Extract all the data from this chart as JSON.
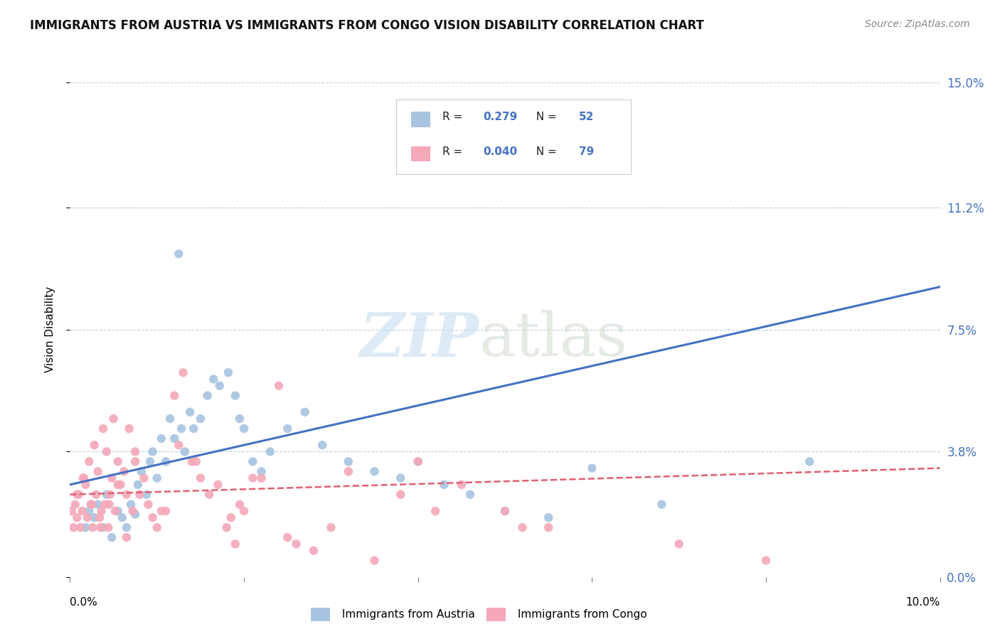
{
  "title": "IMMIGRANTS FROM AUSTRIA VS IMMIGRANTS FROM CONGO VISION DISABILITY CORRELATION CHART",
  "source": "Source: ZipAtlas.com",
  "ylabel": "Vision Disability",
  "ytick_values": [
    0.0,
    3.8,
    7.5,
    11.2,
    15.0
  ],
  "xlim": [
    0.0,
    10.0
  ],
  "ylim": [
    0.0,
    15.0
  ],
  "legend_austria_R": "0.279",
  "legend_austria_N": "52",
  "legend_congo_R": "0.040",
  "legend_congo_N": "79",
  "austria_color": "#a8c4e0",
  "congo_color": "#f4a8b8",
  "austria_line_color": "#4472c4",
  "congo_line_color": "#e06070",
  "austria_scatter_x": [
    0.18,
    0.22,
    0.28,
    0.32,
    0.38,
    0.42,
    0.48,
    0.55,
    0.6,
    0.65,
    0.7,
    0.75,
    0.78,
    0.82,
    0.88,
    0.92,
    0.95,
    1.0,
    1.05,
    1.1,
    1.15,
    1.2,
    1.28,
    1.32,
    1.38,
    1.42,
    1.5,
    1.58,
    1.65,
    1.72,
    1.82,
    1.9,
    1.95,
    2.0,
    2.1,
    2.2,
    2.3,
    2.5,
    2.7,
    2.9,
    3.2,
    3.5,
    3.8,
    4.0,
    4.3,
    4.6,
    5.0,
    5.5,
    6.0,
    6.8,
    8.5,
    1.25
  ],
  "austria_scatter_y": [
    1.5,
    2.0,
    1.8,
    2.2,
    1.5,
    2.5,
    1.2,
    2.0,
    1.8,
    1.5,
    2.2,
    1.9,
    2.8,
    3.2,
    2.5,
    3.5,
    3.8,
    3.0,
    4.2,
    3.5,
    4.8,
    4.2,
    4.5,
    3.8,
    5.0,
    4.5,
    4.8,
    5.5,
    6.0,
    5.8,
    6.2,
    5.5,
    4.8,
    4.5,
    3.5,
    3.2,
    3.8,
    4.5,
    5.0,
    4.0,
    3.5,
    3.2,
    3.0,
    3.5,
    2.8,
    2.5,
    2.0,
    1.8,
    3.3,
    2.2,
    3.5,
    9.8
  ],
  "congo_scatter_x": [
    0.02,
    0.04,
    0.06,
    0.08,
    0.1,
    0.12,
    0.14,
    0.16,
    0.18,
    0.2,
    0.22,
    0.24,
    0.26,
    0.28,
    0.3,
    0.32,
    0.34,
    0.36,
    0.38,
    0.4,
    0.42,
    0.44,
    0.46,
    0.48,
    0.5,
    0.52,
    0.55,
    0.58,
    0.62,
    0.65,
    0.68,
    0.72,
    0.75,
    0.8,
    0.85,
    0.9,
    0.95,
    1.0,
    1.1,
    1.2,
    1.3,
    1.4,
    1.5,
    1.6,
    1.7,
    1.8,
    1.9,
    2.0,
    2.2,
    2.4,
    2.6,
    2.8,
    3.0,
    3.2,
    3.5,
    4.0,
    4.5,
    5.0,
    5.5,
    7.0,
    8.0,
    0.35,
    0.45,
    0.55,
    0.65,
    0.75,
    1.05,
    1.25,
    1.45,
    2.5,
    3.8,
    4.2,
    5.2,
    0.25,
    0.15,
    0.08,
    1.85,
    1.95,
    2.1
  ],
  "congo_scatter_y": [
    2.0,
    1.5,
    2.2,
    1.8,
    2.5,
    1.5,
    2.0,
    3.0,
    2.8,
    1.8,
    3.5,
    2.2,
    1.5,
    4.0,
    2.5,
    3.2,
    1.8,
    2.0,
    4.5,
    2.2,
    3.8,
    1.5,
    2.5,
    3.0,
    4.8,
    2.0,
    3.5,
    2.8,
    3.2,
    2.5,
    4.5,
    2.0,
    3.8,
    2.5,
    3.0,
    2.2,
    1.8,
    1.5,
    2.0,
    5.5,
    6.2,
    3.5,
    3.0,
    2.5,
    2.8,
    1.5,
    1.0,
    2.0,
    3.0,
    5.8,
    1.0,
    0.8,
    1.5,
    3.2,
    0.5,
    3.5,
    2.8,
    2.0,
    1.5,
    1.0,
    0.5,
    1.5,
    2.2,
    2.8,
    1.2,
    3.5,
    2.0,
    4.0,
    3.5,
    1.2,
    2.5,
    2.0,
    1.5,
    2.2,
    3.0,
    2.5,
    1.8,
    2.2,
    3.0
  ],
  "austria_trendline_x": [
    0.0,
    10.0
  ],
  "austria_trendline_y": [
    2.8,
    8.8
  ],
  "congo_trendline_x": [
    0.0,
    10.0
  ],
  "congo_trendline_y": [
    2.5,
    3.3
  ],
  "background_color": "#ffffff",
  "grid_color": "#c0d0e0",
  "title_fontsize": 12,
  "source_fontsize": 10
}
